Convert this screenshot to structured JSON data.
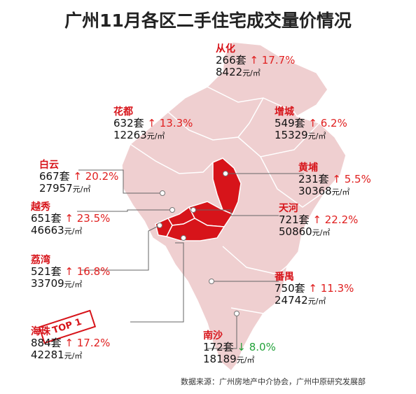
{
  "title": "广州11月各区二手住宅成交量价情况",
  "unit_count": "套",
  "unit_price": "元/㎡",
  "colors": {
    "base": "#efcfd0",
    "highlight": "#d7141a",
    "up": "#e02020",
    "down": "#23a23a"
  },
  "badge": "TOP 1",
  "source": "数据来源：广州房地产中介协会，广州中原研究发展部",
  "districts": [
    {
      "name": "从化",
      "count": "266",
      "arrow": "↑",
      "change": "17.7%",
      "price": "8422",
      "highlighted": false
    },
    {
      "name": "花都",
      "count": "632",
      "arrow": "↑",
      "change": "13.3%",
      "price": "12263",
      "highlighted": false
    },
    {
      "name": "增城",
      "count": "549",
      "arrow": "↑",
      "change": "6.2%",
      "price": "15329",
      "highlighted": false
    },
    {
      "name": "白云",
      "count": "667",
      "arrow": "↑",
      "change": "20.2%",
      "price": "27957",
      "highlighted": false
    },
    {
      "name": "黄埔",
      "count": "231",
      "arrow": "↑",
      "change": "5.5%",
      "price": "30368",
      "highlighted": true
    },
    {
      "name": "越秀",
      "count": "651",
      "arrow": "↑",
      "change": "23.5%",
      "price": "46663",
      "highlighted": true
    },
    {
      "name": "天河",
      "count": "721",
      "arrow": "↑",
      "change": "22.2%",
      "price": "50860",
      "highlighted": true
    },
    {
      "name": "荔湾",
      "count": "521",
      "arrow": "↑",
      "change": "16.8%",
      "price": "33709",
      "highlighted": true
    },
    {
      "name": "番禺",
      "count": "750",
      "arrow": "↑",
      "change": "11.3%",
      "price": "24742",
      "highlighted": false
    },
    {
      "name": "海珠",
      "count": "884",
      "arrow": "↑",
      "change": "17.2%",
      "price": "42281",
      "highlighted": true
    },
    {
      "name": "南沙",
      "count": "172",
      "arrow": "↓",
      "change": "8.0%",
      "price": "18189",
      "highlighted": false
    }
  ]
}
